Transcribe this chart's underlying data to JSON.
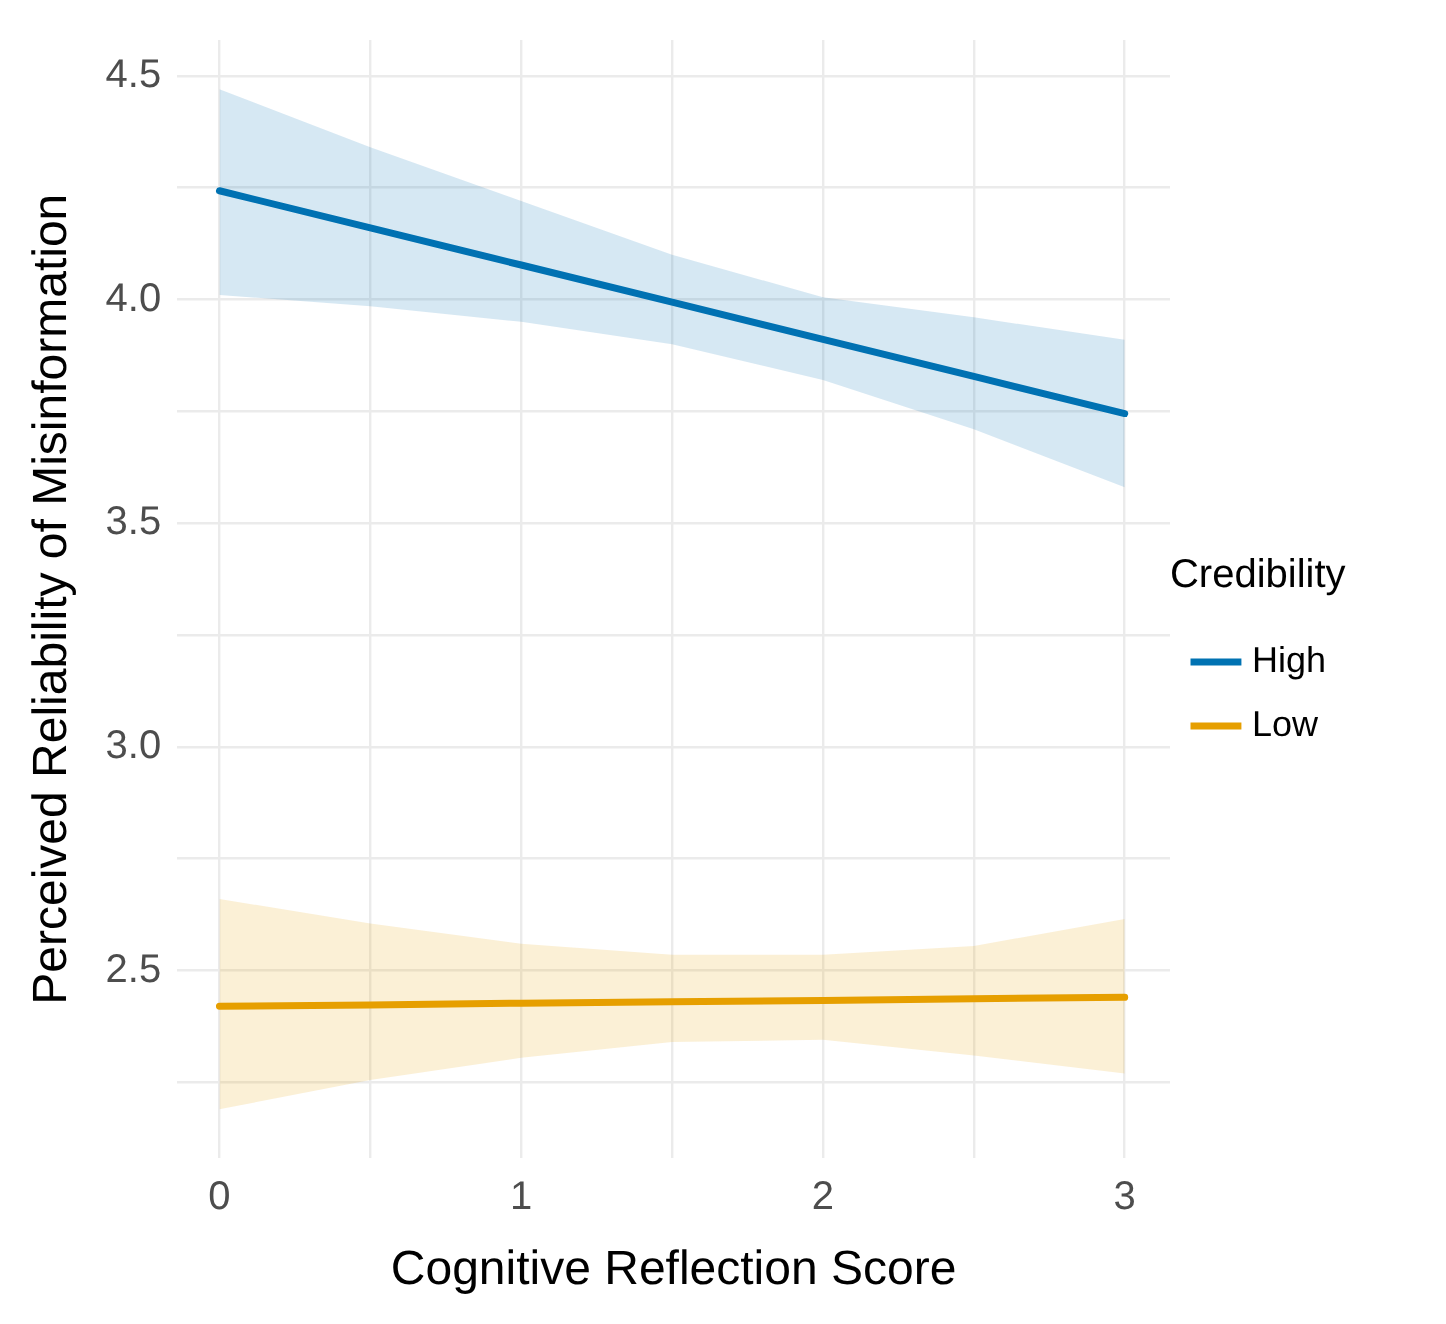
{
  "chart_data": {
    "type": "line",
    "xlabel": "Cognitive Reflection Score",
    "ylabel": "Perceived Reliability of Misinformation",
    "legend_title": "Credibility",
    "x": [
      0,
      0.5,
      1,
      1.5,
      2,
      2.5,
      3
    ],
    "series": [
      {
        "name": "High",
        "color": "#0072b2",
        "values": [
          4.243,
          4.16,
          4.077,
          3.994,
          3.911,
          3.828,
          3.745
        ],
        "lower": [
          4.01,
          3.985,
          3.95,
          3.9,
          3.82,
          3.71,
          3.58
        ],
        "upper": [
          4.47,
          4.34,
          4.22,
          4.1,
          4.005,
          3.96,
          3.91
        ]
      },
      {
        "name": "Low",
        "color": "#e69f00",
        "values": [
          2.42,
          2.423,
          2.427,
          2.43,
          2.433,
          2.437,
          2.44
        ],
        "lower": [
          2.19,
          2.255,
          2.305,
          2.34,
          2.345,
          2.31,
          2.27
        ],
        "upper": [
          2.66,
          2.605,
          2.56,
          2.535,
          2.535,
          2.555,
          2.615
        ]
      }
    ],
    "xlim": [
      -0.14,
      3.15
    ],
    "ylim": [
      2.08,
      4.58
    ],
    "xticks": [
      0,
      {
        "value": 0.5,
        "label": null
      },
      1,
      {
        "value": 1.5,
        "label": null
      },
      2,
      {
        "value": 2.5,
        "label": null
      },
      3
    ],
    "yticks": [
      {
        "value": 2.25,
        "label": null
      },
      2.5,
      {
        "value": 2.75,
        "label": null
      },
      {
        "value": 3,
        "label": "3.0"
      },
      {
        "value": 3.25,
        "label": null
      },
      3.5,
      {
        "value": 3.75,
        "label": null
      },
      {
        "value": 4,
        "label": "4.0"
      },
      {
        "value": 4.25,
        "label": null
      },
      4.5
    ],
    "grid": true,
    "legend": "right",
    "marker": "none",
    "line_style": "solid"
  }
}
